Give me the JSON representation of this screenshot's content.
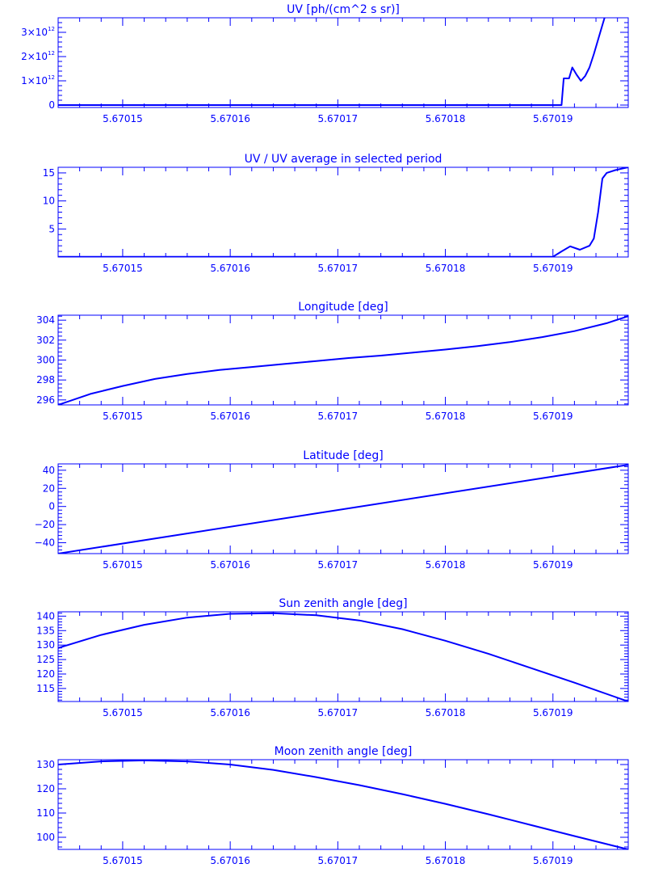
{
  "colors": {
    "line": "#0000ff",
    "background": "#ffffff"
  },
  "chart_data": [
    {
      "type": "line",
      "title": "UV [ph/(cm^2 s sr)]",
      "xlim": [
        5.670144,
        5.670197
      ],
      "x_ticks": [
        "5.67015",
        "5.67016",
        "5.67017",
        "5.67018",
        "5.67019"
      ],
      "x_tick_values": [
        5.67015,
        5.67016,
        5.67017,
        5.67018,
        5.67019
      ],
      "ylim": [
        -100000000000.0,
        3600000000000.0
      ],
      "y_ticks": [
        {
          "value": 0,
          "label": "0"
        },
        {
          "value": 1000000000000.0,
          "mant": "1×10",
          "exp": "12"
        },
        {
          "value": 2000000000000.0,
          "mant": "2×10",
          "exp": "12"
        },
        {
          "value": 3000000000000.0,
          "mant": "3×10",
          "exp": "12"
        }
      ],
      "series": [
        {
          "x": [
            5.670144,
            5.67019,
            5.6701908,
            5.670191,
            5.6701915,
            5.6701918,
            5.6701922,
            5.6701926,
            5.670193,
            5.6701934,
            5.6701938,
            5.6701942,
            5.6701946,
            5.6701948
          ],
          "y": [
            0,
            0,
            0,
            1100000000000.0,
            1100000000000.0,
            1550000000000.0,
            1250000000000.0,
            1000000000000.0,
            1200000000000.0,
            1550000000000.0,
            2100000000000.0,
            2700000000000.0,
            3300000000000.0,
            3600000000000.0
          ]
        }
      ]
    },
    {
      "type": "line",
      "title": "UV / UV average in selected period",
      "xlim": [
        5.670144,
        5.670197
      ],
      "x_ticks": [
        "5.67015",
        "5.67016",
        "5.67017",
        "5.67018",
        "5.67019"
      ],
      "x_tick_values": [
        5.67015,
        5.67016,
        5.67017,
        5.67018,
        5.67019
      ],
      "ylim": [
        0,
        16
      ],
      "y_ticks": [
        {
          "value": 5,
          "label": "5"
        },
        {
          "value": 10,
          "label": "10"
        },
        {
          "value": 15,
          "label": "15"
        }
      ],
      "series": [
        {
          "x": [
            5.670144,
            5.67019,
            5.6701908,
            5.6701916,
            5.6701925,
            5.6701934,
            5.6701938,
            5.6701942,
            5.6701946,
            5.670195,
            5.6701958,
            5.6701965,
            5.670197
          ],
          "y": [
            0.05,
            0.05,
            1.0,
            1.9,
            1.3,
            2.0,
            3.3,
            8.0,
            14.0,
            15.0,
            15.5,
            15.8,
            16.0
          ]
        }
      ]
    },
    {
      "type": "line",
      "title": "Longitude [deg]",
      "xlim": [
        5.670144,
        5.670197
      ],
      "x_ticks": [
        "5.67015",
        "5.67016",
        "5.67017",
        "5.67018",
        "5.67019"
      ],
      "x_tick_values": [
        5.67015,
        5.67016,
        5.67017,
        5.67018,
        5.67019
      ],
      "ylim": [
        295.5,
        304.5
      ],
      "y_ticks": [
        {
          "value": 296,
          "label": "296"
        },
        {
          "value": 298,
          "label": "298"
        },
        {
          "value": 300,
          "label": "300"
        },
        {
          "value": 302,
          "label": "302"
        },
        {
          "value": 304,
          "label": "304"
        }
      ],
      "series": [
        {
          "x": [
            5.670144,
            5.670147,
            5.67015,
            5.670153,
            5.670156,
            5.670159,
            5.670162,
            5.670165,
            5.670168,
            5.670171,
            5.670174,
            5.670177,
            5.67018,
            5.670183,
            5.670186,
            5.670189,
            5.670192,
            5.670195,
            5.670197
          ],
          "y": [
            295.5,
            296.6,
            297.4,
            298.1,
            298.6,
            299.0,
            299.3,
            299.6,
            299.9,
            300.2,
            300.45,
            300.75,
            301.05,
            301.4,
            301.8,
            302.3,
            302.9,
            303.7,
            304.4
          ]
        }
      ]
    },
    {
      "type": "line",
      "title": "Latitude [deg]",
      "xlim": [
        5.670144,
        5.670197
      ],
      "x_ticks": [
        "5.67015",
        "5.67016",
        "5.67017",
        "5.67018",
        "5.67019"
      ],
      "x_tick_values": [
        5.67015,
        5.67016,
        5.67017,
        5.67018,
        5.67019
      ],
      "ylim": [
        -52,
        47
      ],
      "y_ticks": [
        {
          "value": -40,
          "label": "−40"
        },
        {
          "value": -20,
          "label": "−20"
        },
        {
          "value": 0,
          "label": "0"
        },
        {
          "value": 20,
          "label": "20"
        },
        {
          "value": 40,
          "label": "40"
        }
      ],
      "series": [
        {
          "x": [
            5.670144,
            5.670197
          ],
          "y": [
            -52,
            46
          ]
        }
      ]
    },
    {
      "type": "line",
      "title": "Sun zenith angle [deg]",
      "xlim": [
        5.670144,
        5.670197
      ],
      "x_ticks": [
        "5.67015",
        "5.67016",
        "5.67017",
        "5.67018",
        "5.67019"
      ],
      "x_tick_values": [
        5.67015,
        5.67016,
        5.67017,
        5.67018,
        5.67019
      ],
      "ylim": [
        110.5,
        141.5
      ],
      "y_ticks": [
        {
          "value": 115,
          "label": "115"
        },
        {
          "value": 120,
          "label": "120"
        },
        {
          "value": 125,
          "label": "125"
        },
        {
          "value": 130,
          "label": "130"
        },
        {
          "value": 135,
          "label": "135"
        },
        {
          "value": 140,
          "label": "140"
        }
      ],
      "series": [
        {
          "x": [
            5.670144,
            5.670148,
            5.670152,
            5.670156,
            5.67016,
            5.670164,
            5.670168,
            5.670172,
            5.670176,
            5.67018,
            5.670184,
            5.670188,
            5.670192,
            5.670197
          ],
          "y": [
            129,
            133.5,
            137,
            139.5,
            140.8,
            141,
            140.3,
            138.5,
            135.5,
            131.5,
            127,
            122,
            117,
            110.5
          ]
        }
      ]
    },
    {
      "type": "line",
      "title": "Moon zenith angle [deg]",
      "xlim": [
        5.670144,
        5.670197
      ],
      "x_ticks": [
        "5.67015",
        "5.67016",
        "5.67017",
        "5.67018",
        "5.67019"
      ],
      "x_tick_values": [
        5.67015,
        5.67016,
        5.67017,
        5.67018,
        5.67019
      ],
      "ylim": [
        95,
        132
      ],
      "y_ticks": [
        {
          "value": 100,
          "label": "100"
        },
        {
          "value": 110,
          "label": "110"
        },
        {
          "value": 120,
          "label": "120"
        },
        {
          "value": 130,
          "label": "130"
        }
      ],
      "series": [
        {
          "x": [
            5.670144,
            5.670148,
            5.670152,
            5.670156,
            5.67016,
            5.670164,
            5.670168,
            5.670172,
            5.670176,
            5.67018,
            5.670184,
            5.670188,
            5.670192,
            5.670197
          ],
          "y": [
            130,
            131.3,
            131.7,
            131.3,
            130,
            127.8,
            124.8,
            121.5,
            117.8,
            113.8,
            109.5,
            105,
            100.5,
            95
          ]
        }
      ]
    }
  ]
}
